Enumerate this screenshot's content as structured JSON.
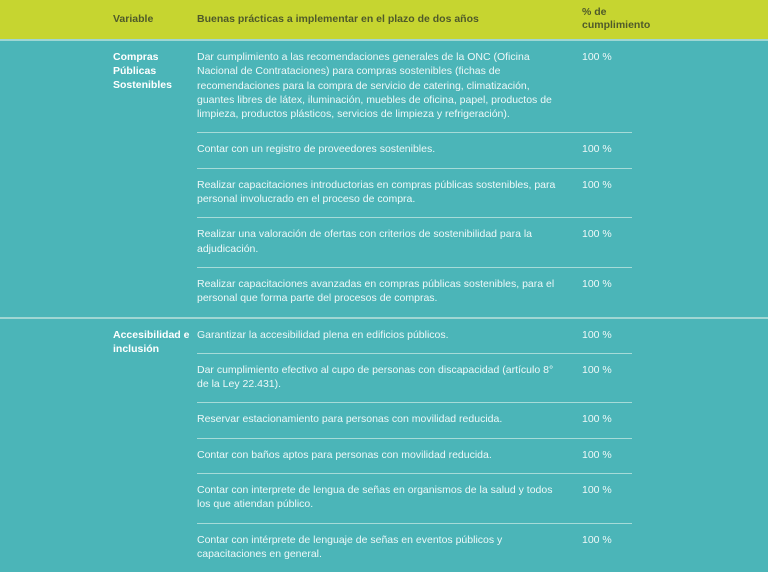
{
  "header": {
    "variable": "Variable",
    "practices": "Buenas prácticas a implementar en el plazo de dos años",
    "percent": "% de cumplimiento"
  },
  "sections": [
    {
      "variable": "Compras Públicas Sostenibles",
      "rows": [
        {
          "text": "Dar cumplimiento a las recomendaciones generales de la ONC (Oficina Nacional de Contrataciones) para compras sostenibles (fichas de recomendaciones para la compra de servicio de catering, climatización, guantes libres de látex, iluminación, muebles de oficina, papel, productos de limpieza, productos plásticos, servicios de limpieza y refrigeración).",
          "percent": "100 %"
        },
        {
          "text": "Contar con un registro de proveedores sostenibles.",
          "percent": "100 %"
        },
        {
          "text": "Realizar capacitaciones introductorias en compras públicas sostenibles, para personal involucrado en el proceso de compra.",
          "percent": "100 %"
        },
        {
          "text": "Realizar una valoración de ofertas con criterios de sostenibilidad para la adjudicación.",
          "percent": "100 %"
        },
        {
          "text": "Realizar capacitaciones avanzadas en compras públicas sostenibles, para el personal que forma parte del procesos de compras.",
          "percent": "100 %"
        }
      ]
    },
    {
      "variable": "Accesibilidad e inclusión",
      "rows": [
        {
          "text": "Garantizar la accesibilidad plena en edificios públicos.",
          "percent": "100 %"
        },
        {
          "text": "Dar cumplimiento efectivo al cupo de personas con  discapacidad (artículo 8° de la Ley 22.431).",
          "percent": "100  %"
        },
        {
          "text": "Reservar estacionamiento para personas con movilidad reducida.",
          "percent": "100 %"
        },
        {
          "text": "Contar con baños aptos para personas con movilidad reducida.",
          "percent": "100  %"
        },
        {
          "text": "Contar con interprete de lengua de señas en organismos de la salud y todos los que atiendan público.",
          "percent": "100 %"
        },
        {
          "text": "Contar con intérprete de lenguaje de señas en eventos públicos y capacitaciones en general.",
          "percent": "100 %"
        }
      ]
    }
  ]
}
